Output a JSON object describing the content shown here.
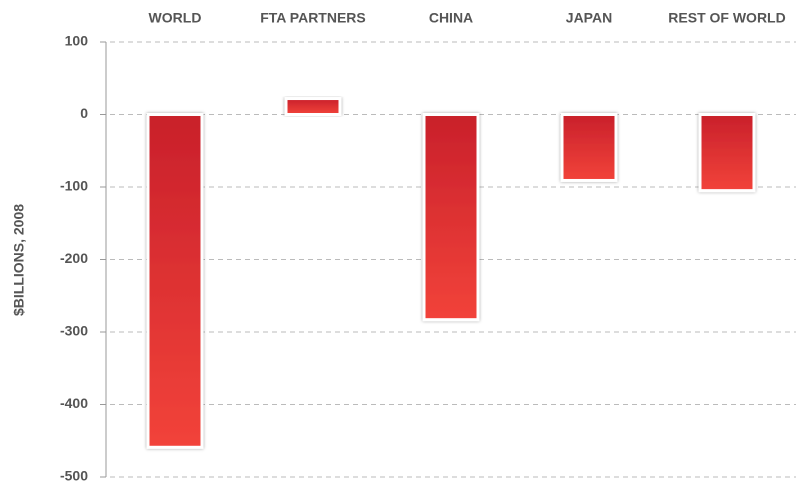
{
  "chart_data": {
    "type": "bar",
    "y_axis_label": "$BILLIONS, 2008",
    "categories": [
      "WORLD",
      "FTA PARTNERS",
      "CHINA",
      "JAPAN",
      "REST OF WORLD"
    ],
    "values": [
      -459,
      22,
      -283,
      -91,
      -105
    ],
    "color": "#d8262c",
    "ylim": [
      -500,
      100
    ],
    "yticks": [
      -500,
      -400,
      -300,
      -200,
      -100,
      0,
      100
    ],
    "grid": true
  }
}
